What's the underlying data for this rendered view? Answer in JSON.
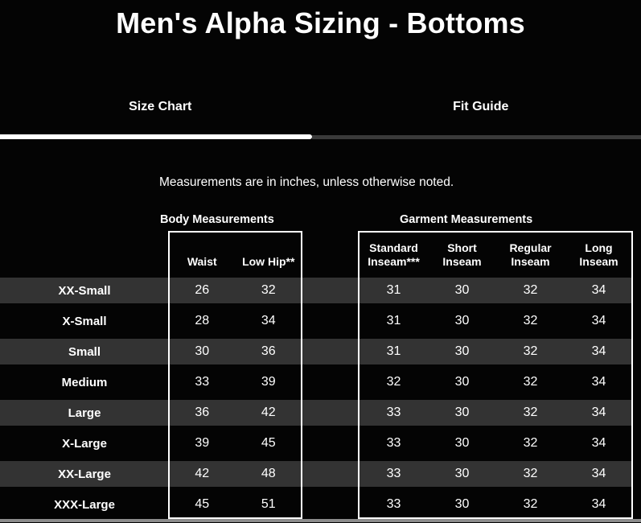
{
  "header": {
    "title": "Men's Alpha Sizing - Bottoms"
  },
  "tabs": [
    {
      "label": "Size Chart",
      "active": true
    },
    {
      "label": "Fit Guide",
      "active": false
    }
  ],
  "note": "Measurements are in inches, unless otherwise noted.",
  "table": {
    "groups": [
      {
        "label": "Body Measurements"
      },
      {
        "label": "Garment Measurements"
      }
    ],
    "columns": [
      "Waist",
      "Low Hip**",
      "Standard Inseam***",
      "Short Inseam",
      "Regular Inseam",
      "Long Inseam"
    ],
    "rows": [
      {
        "size": "XX-Small",
        "values": [
          "26",
          "32",
          "31",
          "30",
          "32",
          "34"
        ]
      },
      {
        "size": "X-Small",
        "values": [
          "28",
          "34",
          "31",
          "30",
          "32",
          "34"
        ]
      },
      {
        "size": "Small",
        "values": [
          "30",
          "36",
          "31",
          "30",
          "32",
          "34"
        ]
      },
      {
        "size": "Medium",
        "values": [
          "33",
          "39",
          "32",
          "30",
          "32",
          "34"
        ]
      },
      {
        "size": "Large",
        "values": [
          "36",
          "42",
          "33",
          "30",
          "32",
          "34"
        ]
      },
      {
        "size": "X-Large",
        "values": [
          "39",
          "45",
          "33",
          "30",
          "32",
          "34"
        ]
      },
      {
        "size": "XX-Large",
        "values": [
          "42",
          "48",
          "33",
          "30",
          "32",
          "34"
        ]
      },
      {
        "size": "XXX-Large",
        "values": [
          "45",
          "51",
          "33",
          "30",
          "32",
          "34"
        ]
      }
    ]
  },
  "colors": {
    "background": "#040404",
    "stripe": "#333333",
    "text": "#ffffff",
    "tab_underline_active": "#ffffff",
    "tab_underline_inactive": "#3a3a3a",
    "box_border": "#ffffff",
    "bottom_bar": "#8c8c8c"
  }
}
